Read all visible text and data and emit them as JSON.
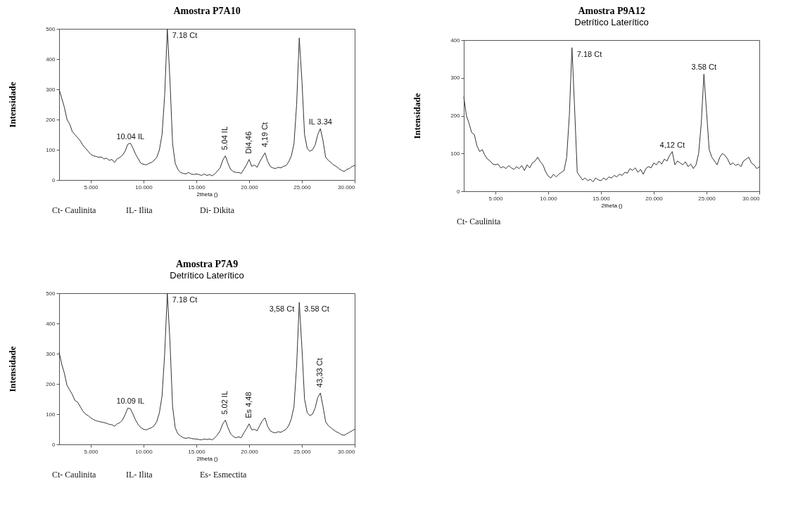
{
  "chart_data": [
    {
      "type": "line",
      "title": "Amostra P7A10",
      "xlabel": "2theta ()",
      "ylabel": "Intensidade",
      "grid": false,
      "xlim": [
        2,
        30
      ],
      "ylim": [
        0,
        500
      ],
      "xticks": [
        {
          "value": 5,
          "label": "5.000"
        },
        {
          "value": 10,
          "label": "10.000"
        },
        {
          "value": 15,
          "label": "15.000"
        },
        {
          "value": 20,
          "label": "20.000"
        },
        {
          "value": 25,
          "label": "25.000"
        },
        {
          "value": 30,
          "label": "30.000"
        }
      ],
      "yticks": [
        0,
        100,
        200,
        300,
        400,
        500
      ],
      "x": [
        2,
        2.25,
        2.5,
        2.75,
        3,
        3.25,
        3.5,
        3.75,
        4,
        4.25,
        4.5,
        4.75,
        5,
        5.25,
        5.5,
        5.75,
        6,
        6.25,
        6.5,
        6.75,
        7,
        7.25,
        7.5,
        7.75,
        8,
        8.25,
        8.5,
        8.75,
        9,
        9.25,
        9.5,
        9.75,
        10,
        10.25,
        10.5,
        10.75,
        11,
        11.25,
        11.5,
        11.75,
        12,
        12.25,
        12.5,
        12.75,
        13,
        13.25,
        13.5,
        13.75,
        14,
        14.25,
        14.5,
        14.75,
        15,
        15.25,
        15.5,
        15.75,
        16,
        16.25,
        16.5,
        16.75,
        17,
        17.25,
        17.5,
        17.75,
        18,
        18.25,
        18.5,
        18.75,
        19,
        19.25,
        19.5,
        19.75,
        20,
        20.25,
        20.5,
        20.75,
        21,
        21.25,
        21.5,
        21.75,
        22,
        22.25,
        22.5,
        22.75,
        23,
        23.25,
        23.5,
        23.75,
        24,
        24.25,
        24.5,
        24.75,
        25,
        25.25,
        25.5,
        25.75,
        26,
        26.25,
        26.5,
        26.75,
        27,
        27.25,
        27.5,
        27.75,
        28,
        28.25,
        28.5,
        28.75,
        29,
        29.25,
        29.5,
        29.75,
        30
      ],
      "series": [
        {
          "color": "#333333",
          "values": [
            300,
            270,
            240,
            200,
            185,
            160,
            150,
            140,
            130,
            115,
            105,
            95,
            85,
            80,
            78,
            75,
            76,
            70,
            72,
            65,
            68,
            58,
            70,
            75,
            82,
            95,
            118,
            122,
            105,
            85,
            70,
            55,
            52,
            50,
            55,
            58,
            65,
            75,
            100,
            150,
            280,
            500,
            330,
            120,
            55,
            35,
            25,
            22,
            20,
            25,
            20,
            18,
            20,
            18,
            15,
            20,
            15,
            18,
            14,
            20,
            30,
            40,
            65,
            80,
            55,
            35,
            28,
            25,
            25,
            22,
            35,
            50,
            68,
            45,
            50,
            42,
            60,
            75,
            90,
            62,
            45,
            40,
            38,
            42,
            40,
            45,
            48,
            60,
            80,
            120,
            250,
            470,
            330,
            150,
            105,
            95,
            100,
            115,
            150,
            170,
            130,
            75,
            65,
            58,
            50,
            45,
            38,
            32,
            28,
            35,
            38,
            45,
            48
          ]
        }
      ],
      "annotations": [
        {
          "text": "7.18 Ct",
          "x": 12.25,
          "y": 500
        },
        {
          "text": "10.04 IL",
          "x": 8.75,
          "y": 122
        },
        {
          "text": "5.04 IL",
          "x": 17.75,
          "y": 80
        },
        {
          "text": "Di4,46",
          "x": 20,
          "y": 68
        },
        {
          "text": "4,19 Ct",
          "x": 21.5,
          "y": 90
        },
        {
          "text": "IL 3.34",
          "x": 26.75,
          "y": 170
        },
        "Ct- Caulinita",
        "IL- Ilita",
        "Di- Dikita"
      ]
    },
    {
      "type": "line",
      "title": "Amostra P9A12",
      "subtitle": "Detrítico Laterítico",
      "xlabel": "2theta ()",
      "ylabel": "Intensidade",
      "grid": false,
      "xlim": [
        2,
        30
      ],
      "ylim": [
        0,
        400
      ],
      "xticks": [
        {
          "value": 5,
          "label": "5.000"
        },
        {
          "value": 10,
          "label": "10.000"
        },
        {
          "value": 15,
          "label": "15.000"
        },
        {
          "value": 20,
          "label": "20.000"
        },
        {
          "value": 25,
          "label": "25.000"
        },
        {
          "value": 30,
          "label": "30.000"
        }
      ],
      "yticks": [
        0,
        100,
        200,
        300,
        400
      ],
      "x": [
        2,
        2.25,
        2.5,
        2.75,
        3,
        3.25,
        3.5,
        3.75,
        4,
        4.25,
        4.5,
        4.75,
        5,
        5.25,
        5.5,
        5.75,
        6,
        6.25,
        6.5,
        6.75,
        7,
        7.25,
        7.5,
        7.75,
        8,
        8.25,
        8.5,
        8.75,
        9,
        9.25,
        9.5,
        9.75,
        10,
        10.25,
        10.5,
        10.75,
        11,
        11.25,
        11.5,
        11.75,
        12,
        12.25,
        12.5,
        12.75,
        13,
        13.25,
        13.5,
        13.75,
        14,
        14.25,
        14.5,
        14.75,
        15,
        15.25,
        15.5,
        15.75,
        16,
        16.25,
        16.5,
        16.75,
        17,
        17.25,
        17.5,
        17.75,
        18,
        18.25,
        18.5,
        18.75,
        19,
        19.25,
        19.5,
        19.75,
        20,
        20.25,
        20.5,
        20.75,
        21,
        21.25,
        21.5,
        21.75,
        22,
        22.25,
        22.5,
        22.75,
        23,
        23.25,
        23.5,
        23.75,
        24,
        24.25,
        24.5,
        24.75,
        25,
        25.25,
        25.5,
        25.75,
        26,
        26.25,
        26.5,
        26.75,
        27,
        27.25,
        27.5,
        27.75,
        28,
        28.25,
        28.5,
        28.75,
        29,
        29.25,
        29.5,
        29.75,
        30
      ],
      "series": [
        {
          "color": "#333333",
          "values": [
            250,
            200,
            180,
            155,
            150,
            120,
            105,
            110,
            95,
            85,
            80,
            72,
            70,
            72,
            62,
            65,
            60,
            68,
            62,
            58,
            65,
            60,
            68,
            55,
            70,
            62,
            75,
            80,
            90,
            78,
            70,
            52,
            40,
            35,
            45,
            38,
            45,
            50,
            55,
            90,
            200,
            380,
            220,
            50,
            40,
            30,
            35,
            28,
            32,
            25,
            35,
            30,
            28,
            35,
            30,
            38,
            35,
            42,
            38,
            45,
            42,
            50,
            48,
            60,
            55,
            62,
            50,
            58,
            45,
            60,
            65,
            62,
            75,
            70,
            80,
            72,
            85,
            80,
            95,
            105,
            70,
            80,
            75,
            70,
            78,
            65,
            72,
            60,
            70,
            100,
            180,
            310,
            210,
            110,
            90,
            80,
            70,
            90,
            100,
            95,
            85,
            70,
            75,
            68,
            72,
            65,
            80,
            85,
            90,
            75,
            70,
            60,
            65
          ]
        }
      ],
      "annotations": [
        {
          "text": "7.18 Ct",
          "x": 12.25,
          "y": 380
        },
        {
          "text": "3.58 Ct",
          "x": 24.75,
          "y": 310
        },
        {
          "text": "4,12 Ct",
          "x": 21.75,
          "y": 105
        },
        "Ct- Caulinita"
      ]
    },
    {
      "type": "line",
      "title": "Amostra P7A9",
      "subtitle": "Detrítico Laterítico",
      "xlabel": "2theta ()",
      "ylabel": "Intensidade",
      "grid": false,
      "xlim": [
        2,
        30
      ],
      "ylim": [
        0,
        500
      ],
      "xticks": [
        {
          "value": 5,
          "label": "5.000"
        },
        {
          "value": 10,
          "label": "10.000"
        },
        {
          "value": 15,
          "label": "15.000"
        },
        {
          "value": 20,
          "label": "20.000"
        },
        {
          "value": 25,
          "label": "25.000"
        },
        {
          "value": 30,
          "label": "30.000"
        }
      ],
      "yticks": [
        0,
        100,
        200,
        300,
        400,
        500
      ],
      "x": [
        2,
        2.25,
        2.5,
        2.75,
        3,
        3.25,
        3.5,
        3.75,
        4,
        4.25,
        4.5,
        4.75,
        5,
        5.25,
        5.5,
        5.75,
        6,
        6.25,
        6.5,
        6.75,
        7,
        7.25,
        7.5,
        7.75,
        8,
        8.25,
        8.5,
        8.75,
        9,
        9.25,
        9.5,
        9.75,
        10,
        10.25,
        10.5,
        10.75,
        11,
        11.25,
        11.5,
        11.75,
        12,
        12.25,
        12.5,
        12.75,
        13,
        13.25,
        13.5,
        13.75,
        14,
        14.25,
        14.5,
        14.75,
        15,
        15.25,
        15.5,
        15.75,
        16,
        16.25,
        16.5,
        16.75,
        17,
        17.25,
        17.5,
        17.75,
        18,
        18.25,
        18.5,
        18.75,
        19,
        19.25,
        19.5,
        19.75,
        20,
        20.25,
        20.5,
        20.75,
        21,
        21.25,
        21.5,
        21.75,
        22,
        22.25,
        22.5,
        22.75,
        23,
        23.25,
        23.5,
        23.75,
        24,
        24.25,
        24.5,
        24.75,
        25,
        25.25,
        25.5,
        25.75,
        26,
        26.25,
        26.5,
        26.75,
        27,
        27.25,
        27.5,
        27.75,
        28,
        28.25,
        28.5,
        28.75,
        29,
        29.25,
        29.5,
        29.75,
        30
      ],
      "series": [
        {
          "color": "#333333",
          "values": [
            305,
            265,
            235,
            195,
            180,
            165,
            145,
            140,
            125,
            110,
            100,
            95,
            88,
            82,
            78,
            76,
            74,
            72,
            70,
            66,
            65,
            60,
            68,
            72,
            80,
            98,
            120,
            118,
            100,
            80,
            65,
            55,
            50,
            48,
            52,
            55,
            62,
            75,
            105,
            160,
            300,
            500,
            340,
            125,
            55,
            35,
            28,
            22,
            20,
            22,
            20,
            18,
            18,
            16,
            15,
            18,
            16,
            18,
            15,
            22,
            32,
            45,
            68,
            80,
            55,
            35,
            26,
            22,
            25,
            22,
            38,
            52,
            68,
            48,
            50,
            45,
            62,
            78,
            88,
            60,
            45,
            40,
            38,
            42,
            40,
            45,
            50,
            62,
            85,
            125,
            260,
            470,
            320,
            150,
            105,
            95,
            100,
            120,
            155,
            170,
            125,
            75,
            62,
            55,
            48,
            42,
            38,
            32,
            30,
            35,
            40,
            45,
            50
          ]
        }
      ],
      "annotations": [
        {
          "text": "7.18 Ct",
          "x": 12.25,
          "y": 500
        },
        {
          "text": "10.09 IL",
          "x": 8.75,
          "y": 120
        },
        {
          "text": "5.02 IL",
          "x": 17.75,
          "y": 80
        },
        {
          "text": "Es 4,48",
          "x": 20,
          "y": 68
        },
        {
          "text": "3,58 Ct",
          "x": 24.75,
          "y": 470
        },
        {
          "text": "3.58 Ct",
          "x": 24.75,
          "y": 470
        },
        {
          "text": "43,33 Ct",
          "x": 26.75,
          "y": 170
        },
        "Ct- Caulinita",
        "IL- Ilita",
        "Es- Esmectita"
      ]
    }
  ]
}
